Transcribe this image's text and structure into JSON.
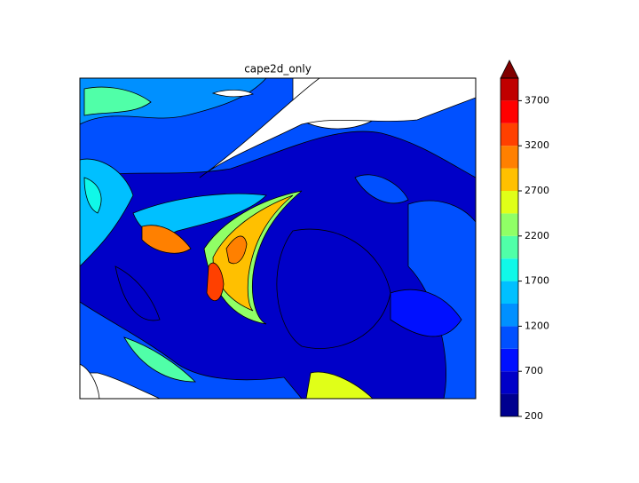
{
  "chart_data": {
    "type": "contourf",
    "title": "cape2d_only",
    "colorbar": {
      "levels": [
        200,
        450,
        700,
        950,
        1200,
        1450,
        1700,
        1950,
        2200,
        2450,
        2700,
        2950,
        3200,
        3450,
        3700,
        3950
      ],
      "colors": [
        "#00008f",
        "#0000c8",
        "#0010ff",
        "#0050ff",
        "#0090ff",
        "#00c0ff",
        "#10f8e8",
        "#50ffa8",
        "#90ff66",
        "#e0ff18",
        "#ffc000",
        "#ff8000",
        "#ff4000",
        "#ff0000",
        "#c00000"
      ],
      "extend": "max",
      "extend_color": "#800000",
      "ylim": [
        200,
        3950
      ],
      "yticks": [
        200,
        700,
        1200,
        1700,
        2200,
        2700,
        3200,
        3700
      ]
    }
  }
}
